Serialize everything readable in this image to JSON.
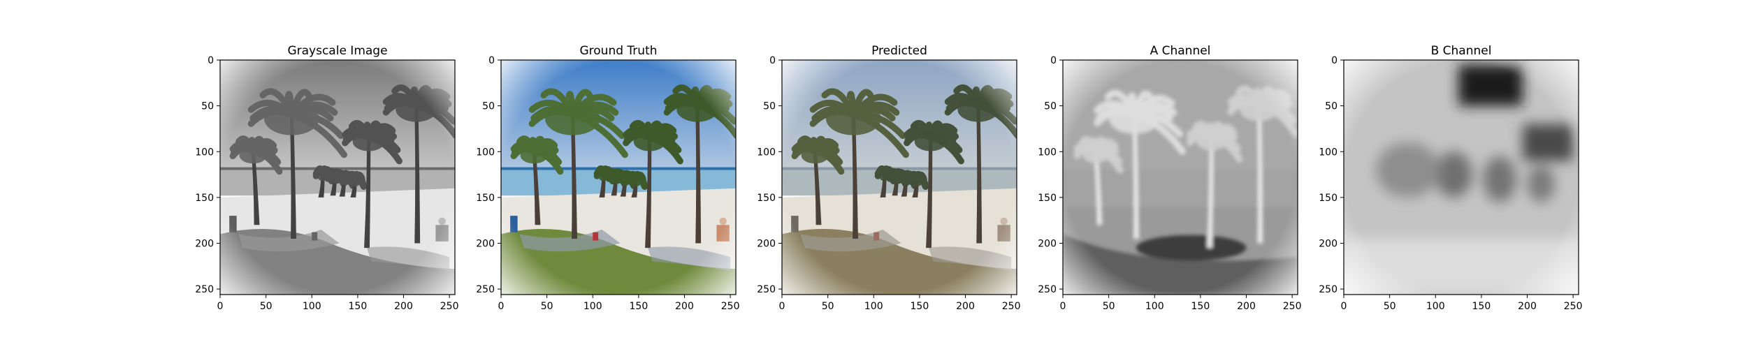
{
  "chart_data": {
    "type": "image_grid",
    "panels": [
      {
        "title": "Grayscale Image",
        "kind": "grayscale"
      },
      {
        "title": "Ground Truth",
        "kind": "color_truth"
      },
      {
        "title": "Predicted",
        "kind": "color_pred"
      },
      {
        "title": "A Channel",
        "kind": "a_channel"
      },
      {
        "title": "B Channel",
        "kind": "b_channel"
      }
    ],
    "x_ticks": [
      "0",
      "50",
      "100",
      "150",
      "200",
      "250"
    ],
    "y_ticks": [
      "0",
      "50",
      "100",
      "150",
      "200",
      "250"
    ],
    "xlim": [
      0,
      256
    ],
    "ylim": [
      256,
      0
    ],
    "grid": false,
    "legend": "none"
  },
  "colors": {
    "sky_truth": "#5d8fd0",
    "sky_pred": "#8aa0bd",
    "sea": "#86b8d8",
    "sand": "#e9e6df",
    "grass_truth": "#6f8a3c",
    "grass_pred": "#8a7f5f",
    "palm_green": "#4d6e34",
    "trunk": "#4a4038"
  }
}
